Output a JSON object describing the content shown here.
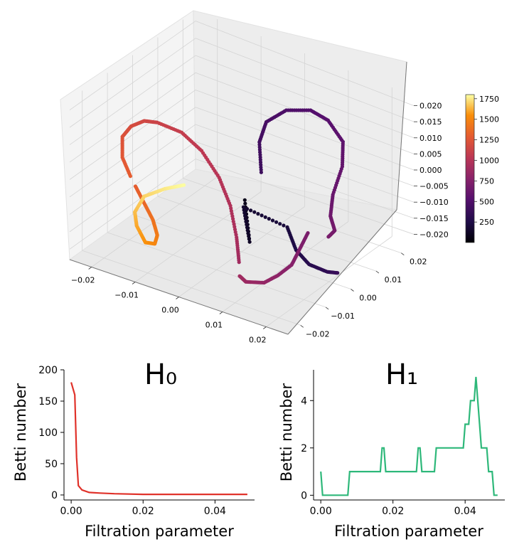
{
  "chart_data": [
    {
      "type": "scatter3d",
      "x_ticks": [
        "−0.02",
        "−0.01",
        "0.00",
        "0.01",
        "0.02"
      ],
      "y_ticks": [
        "−0.02",
        "−0.01",
        "0.00",
        "0.01",
        "0.02"
      ],
      "z_ticks": [
        "−0.020",
        "−0.015",
        "−0.010",
        "−0.005",
        "0.000",
        "0.005",
        "0.010",
        "0.015",
        "0.020"
      ],
      "xlim": [
        -0.025,
        0.025
      ],
      "ylim": [
        -0.025,
        0.025
      ],
      "zlim": [
        -0.023,
        0.023
      ],
      "colormap": "inferno",
      "colorbar": {
        "ticks": [
          "250",
          "500",
          "750",
          "1000",
          "1250",
          "1500",
          "1750"
        ],
        "range": [
          1,
          1800
        ]
      },
      "grid": true,
      "segments": [
        {
          "color_start": 80,
          "color_end": 380,
          "points": [
            [
              0.003,
              -0.004,
              -0.004
            ],
            [
              0.007,
              -0.009,
              -0.012
            ],
            [
              0.005,
              -0.008,
              -0.003
            ],
            [
              0.011,
              -0.001,
              -0.01
            ],
            [
              0.013,
              -0.001,
              -0.016
            ],
            [
              0.016,
              -0.001,
              -0.019
            ],
            [
              0.019,
              0.001,
              -0.021
            ],
            [
              0.021,
              0.002,
              -0.021
            ]
          ]
        },
        {
          "color_start": 400,
          "color_end": 700,
          "points": [
            [
              0.001,
              0.006,
              -0.002
            ],
            [
              0.0,
              0.007,
              0.006
            ],
            [
              0.001,
              0.008,
              0.012
            ],
            [
              0.005,
              0.009,
              0.017
            ],
            [
              0.01,
              0.01,
              0.019
            ],
            [
              0.014,
              0.01,
              0.018
            ],
            [
              0.018,
              0.009,
              0.014
            ],
            [
              0.019,
              0.007,
              0.008
            ],
            [
              0.018,
              0.005,
              0.0
            ],
            [
              0.018,
              0.004,
              -0.006
            ],
            [
              0.019,
              0.004,
              -0.01
            ],
            [
              0.018,
              0.003,
              -0.012
            ]
          ]
        },
        {
          "color_start": 700,
          "color_end": 900,
          "points": [
            [
              0.014,
              0.002,
              -0.012
            ],
            [
              0.013,
              0.0,
              -0.017
            ],
            [
              0.012,
              -0.001,
              -0.021
            ],
            [
              0.01,
              -0.003,
              -0.024
            ],
            [
              0.008,
              -0.005,
              -0.026
            ],
            [
              0.005,
              -0.007,
              -0.026
            ],
            [
              0.004,
              -0.008,
              -0.024
            ]
          ]
        },
        {
          "color_start": 900,
          "color_end": 1300,
          "points": [
            [
              0.004,
              -0.008,
              -0.02
            ],
            [
              0.004,
              -0.009,
              -0.012
            ],
            [
              0.002,
              -0.008,
              -0.004
            ],
            [
              0.0,
              -0.009,
              0.004
            ],
            [
              -0.004,
              -0.009,
              0.01
            ],
            [
              -0.008,
              -0.01,
              0.014
            ],
            [
              -0.013,
              -0.011,
              0.015
            ],
            [
              -0.016,
              -0.011,
              0.014
            ],
            [
              -0.019,
              -0.011,
              0.011
            ],
            [
              -0.021,
              -0.011,
              0.007
            ],
            [
              -0.021,
              -0.011,
              0.001
            ],
            [
              -0.019,
              -0.011,
              -0.004
            ]
          ]
        },
        {
          "color_start": 1300,
          "color_end": 1800,
          "points": [
            [
              -0.018,
              -0.011,
              -0.006
            ],
            [
              -0.016,
              -0.011,
              -0.01
            ],
            [
              -0.014,
              -0.011,
              -0.014
            ],
            [
              -0.013,
              -0.011,
              -0.018
            ],
            [
              -0.013,
              -0.012,
              -0.02
            ],
            [
              -0.014,
              -0.014,
              -0.019
            ],
            [
              -0.016,
              -0.014,
              -0.015
            ],
            [
              -0.017,
              -0.013,
              -0.012
            ],
            [
              -0.016,
              -0.011,
              -0.008
            ],
            [
              -0.013,
              -0.008,
              -0.006
            ],
            [
              -0.01,
              -0.005,
              -0.005
            ]
          ]
        }
      ]
    },
    {
      "type": "line",
      "title": "H₀",
      "xlabel": "Filtration parameter",
      "ylabel": "Betti number",
      "xlim": [
        -0.002,
        0.051
      ],
      "ylim": [
        -8,
        200
      ],
      "x_ticks": [
        "0.00",
        "0.02",
        "0.04"
      ],
      "y_ticks": [
        "0",
        "50",
        "100",
        "150",
        "200"
      ],
      "color": "#e0322a",
      "x": [
        0.0,
        0.001,
        0.0015,
        0.002,
        0.003,
        0.005,
        0.008,
        0.012,
        0.02,
        0.03,
        0.04,
        0.049
      ],
      "y": [
        180,
        160,
        60,
        15,
        8,
        4,
        3,
        2,
        1,
        1,
        1,
        1
      ]
    },
    {
      "type": "line",
      "title": "H₁",
      "xlabel": "Filtration parameter",
      "ylabel": "Betti number",
      "xlim": [
        -0.002,
        0.051
      ],
      "ylim": [
        -0.2,
        5.3
      ],
      "x_ticks": [
        "0.00",
        "0.02",
        "0.04"
      ],
      "y_ticks": [
        "0",
        "2",
        "4"
      ],
      "color": "#2eb87a",
      "x": [
        0.0,
        0.0005,
        0.0075,
        0.008,
        0.0165,
        0.017,
        0.0175,
        0.018,
        0.0265,
        0.027,
        0.0275,
        0.028,
        0.0315,
        0.032,
        0.0395,
        0.04,
        0.041,
        0.0415,
        0.042,
        0.0425,
        0.043,
        0.044,
        0.0445,
        0.046,
        0.0465,
        0.0475,
        0.048,
        0.049
      ],
      "y": [
        1,
        0,
        0,
        1,
        1,
        2,
        2,
        1,
        1,
        2,
        2,
        1,
        1,
        2,
        2,
        3,
        3,
        4,
        4,
        4,
        5,
        3,
        2,
        2,
        1,
        1,
        0,
        0
      ]
    }
  ]
}
